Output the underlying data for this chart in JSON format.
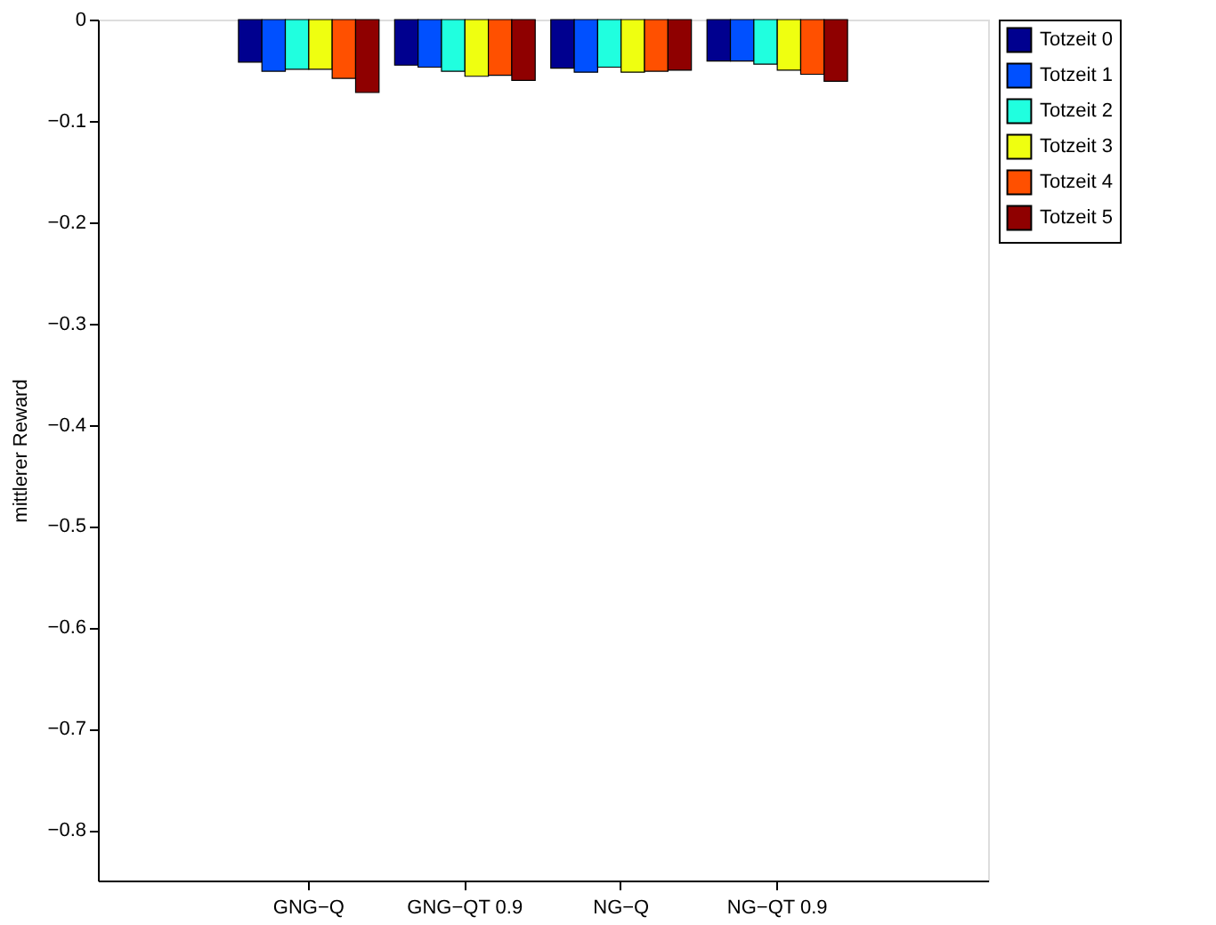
{
  "chart_data": {
    "type": "bar",
    "ylabel": "mittlerer Reward",
    "categories": [
      "GNG−Q",
      "GNG−QT 0.9",
      "NG−Q",
      "NG−QT 0.9"
    ],
    "series": [
      {
        "name": "Totzeit 0",
        "color": "#00008f",
        "values": [
          -0.042,
          -0.045,
          -0.048,
          -0.041
        ]
      },
      {
        "name": "Totzeit 1",
        "color": "#0050ff",
        "values": [
          -0.051,
          -0.047,
          -0.052,
          -0.041
        ]
      },
      {
        "name": "Totzeit 2",
        "color": "#20ffdf",
        "values": [
          -0.049,
          -0.051,
          -0.047,
          -0.044
        ]
      },
      {
        "name": "Totzeit 3",
        "color": "#efff10",
        "values": [
          -0.049,
          -0.056,
          -0.052,
          -0.05
        ]
      },
      {
        "name": "Totzeit 4",
        "color": "#ff5000",
        "values": [
          -0.058,
          -0.055,
          -0.051,
          -0.054
        ]
      },
      {
        "name": "Totzeit 5",
        "color": "#8f0000",
        "values": [
          -0.072,
          -0.06,
          -0.05,
          -0.061
        ]
      }
    ],
    "ylim": [
      -0.85,
      0
    ],
    "yticks": [
      {
        "value": 0,
        "label": "0"
      },
      -0.1,
      -0.2,
      -0.3,
      -0.4,
      -0.5,
      -0.6,
      -0.7,
      -0.8
    ],
    "grid": false,
    "legend": "top right"
  }
}
